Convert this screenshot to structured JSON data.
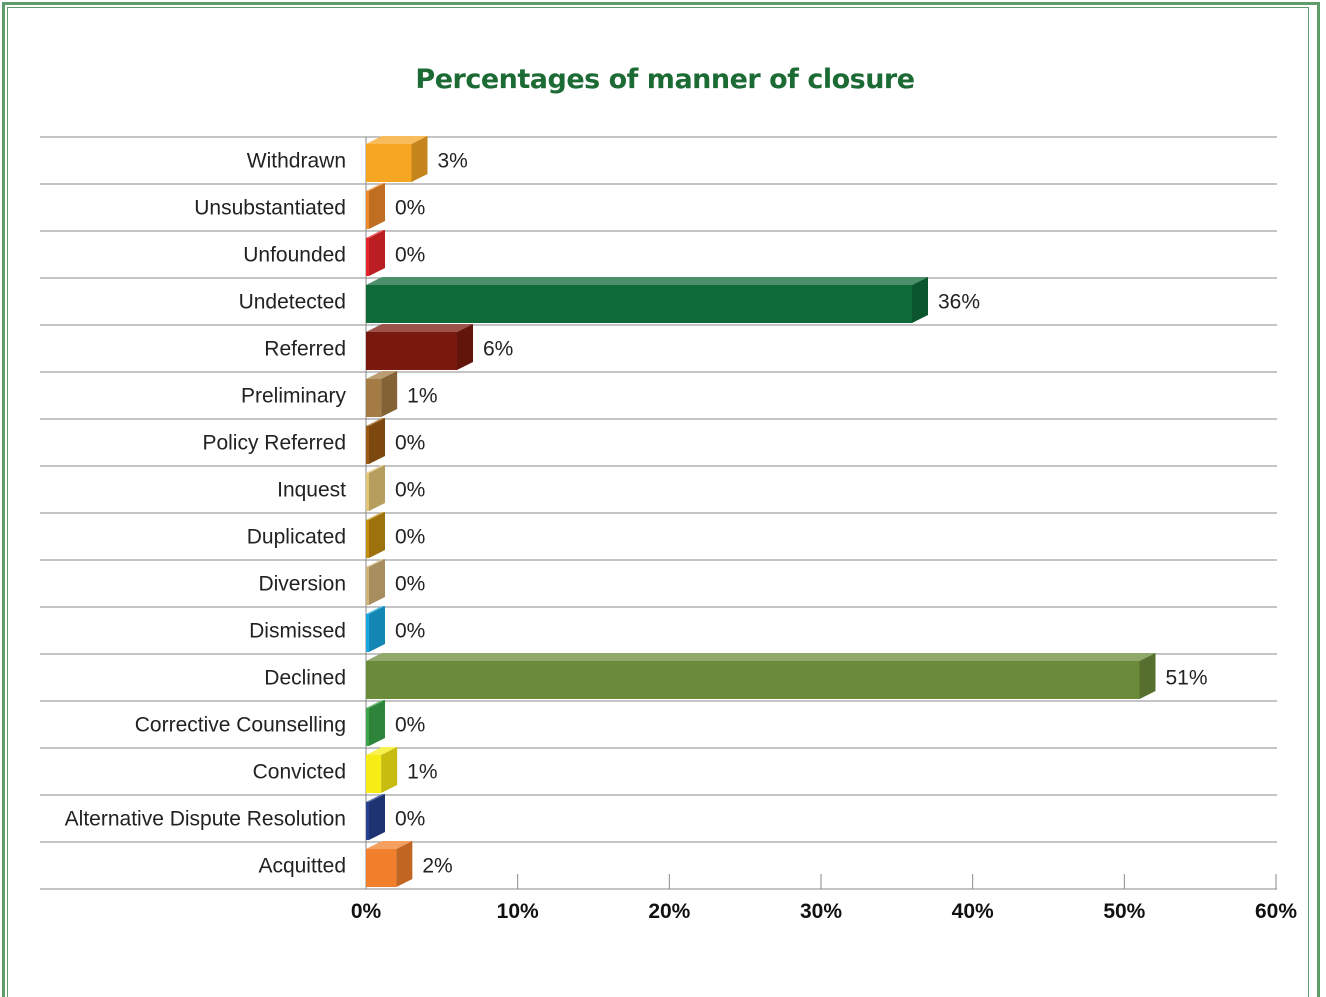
{
  "chart_data": {
    "type": "bar",
    "orientation": "horizontal",
    "title": "Percentages of manner of closure",
    "categories": [
      "Withdrawn",
      "Unsubstantiated",
      "Unfounded",
      "Undetected",
      "Referred",
      "Preliminary",
      "Policy Referred",
      "Inquest",
      "Duplicated",
      "Diversion",
      "Dismissed",
      "Declined",
      "Corrective Counselling",
      "Convicted",
      "Alternative Dispute Resolution",
      "Acquitted"
    ],
    "values": [
      3,
      0,
      0,
      36,
      6,
      1,
      0,
      0,
      0,
      0,
      0,
      51,
      0,
      1,
      0,
      2
    ],
    "value_labels": [
      "3%",
      "0%",
      "0%",
      "36%",
      "6%",
      "1%",
      "0%",
      "0%",
      "0%",
      "0%",
      "0%",
      "51%",
      "0%",
      "1%",
      "0%",
      "2%"
    ],
    "colors": [
      "#f6a623",
      "#f08a2a",
      "#e8242b",
      "#0f6b3a",
      "#7a1a0e",
      "#a47b44",
      "#9c5a10",
      "#e2c576",
      "#c48f10",
      "#cfb277",
      "#18a7e0",
      "#6b8b3b",
      "#3aa54a",
      "#f7ec13",
      "#26418f",
      "#f17f2b"
    ],
    "x_ticks": [
      "0%",
      "10%",
      "20%",
      "30%",
      "40%",
      "50%",
      "60%"
    ],
    "xlim": [
      0,
      60
    ],
    "grid": "horizontal row separators",
    "legend": "none"
  }
}
